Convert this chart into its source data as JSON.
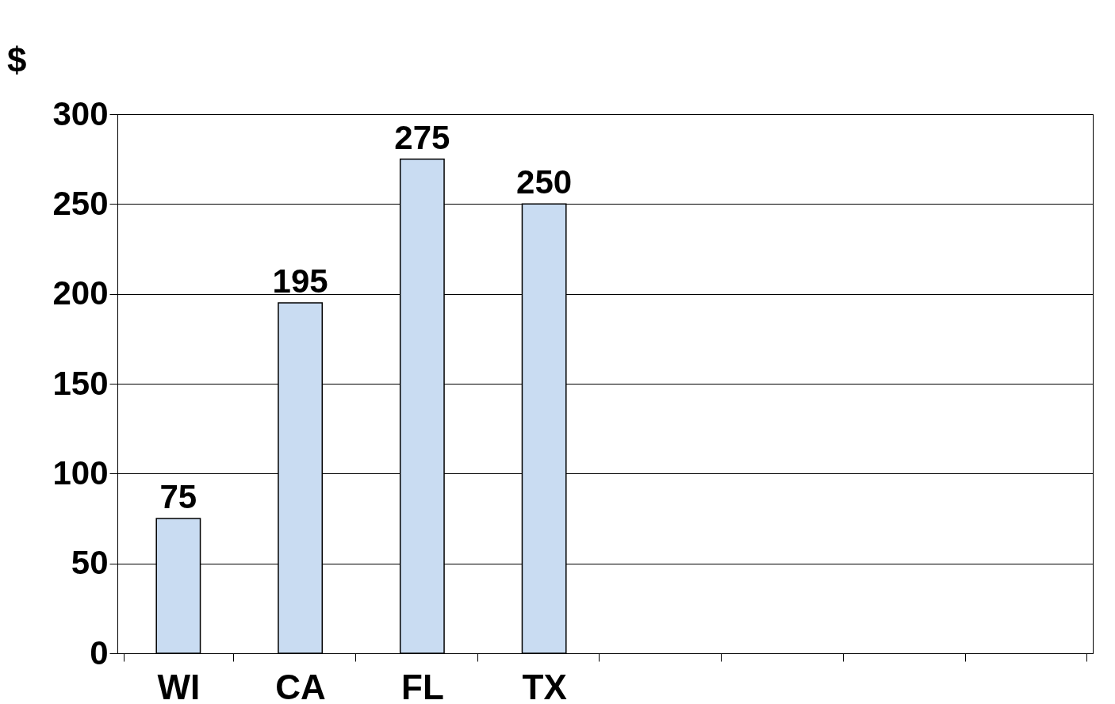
{
  "chart_data": {
    "type": "bar",
    "ylabel": "$",
    "categories": [
      "WI",
      "CA",
      "FL",
      "TX",
      null,
      null,
      null,
      null
    ],
    "values": [
      75,
      195,
      275,
      250,
      null,
      null,
      null,
      null
    ],
    "color": "#c9dcf2",
    "ylim": [
      0,
      300
    ],
    "yticks": [
      0,
      50,
      100,
      150,
      200,
      250,
      300
    ],
    "grid": "y",
    "data_labels": true
  }
}
